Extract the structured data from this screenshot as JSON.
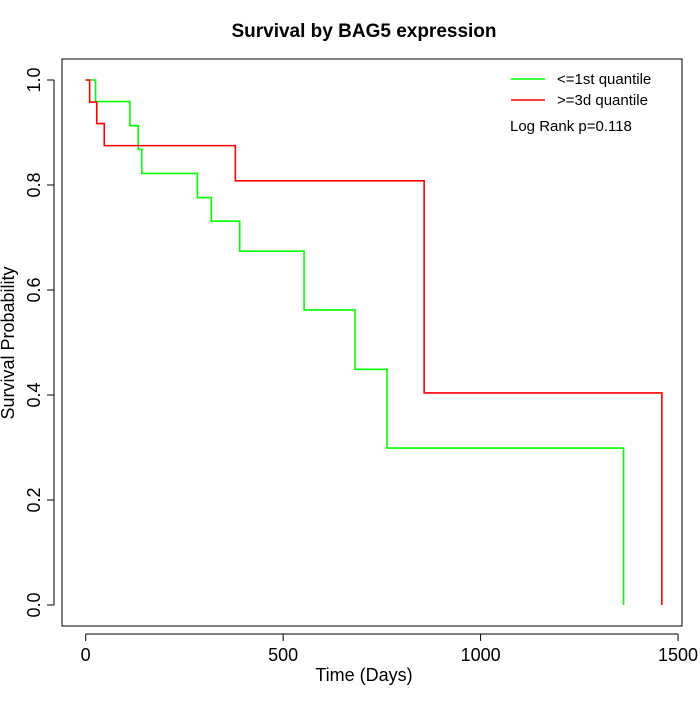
{
  "chart_data": {
    "type": "line",
    "subtype": "kaplan-meier step",
    "title": "Survival by BAG5 expression",
    "xlabel": "Time (Days)",
    "ylabel": "Survival Probability",
    "xlim": [
      -60,
      1510
    ],
    "ylim": [
      -0.04,
      1.04
    ],
    "xticks": [
      0,
      500,
      1000,
      1500
    ],
    "xtick_labels": [
      "0",
      "500",
      "1000",
      "1500"
    ],
    "yticks": [
      0,
      0.2,
      0.4,
      0.6,
      0.8,
      1.0
    ],
    "ytick_labels": [
      "0.0",
      "0.2",
      "0.4",
      "0.6",
      "0.8",
      "1.0"
    ],
    "grid": false,
    "legend_position": "top-right",
    "annotation": "Log Rank p=0.118",
    "series": [
      {
        "name": "<=1st quantile",
        "color": "#00ff00",
        "x": [
          0,
          25,
          112,
          133,
          142,
          283,
          318,
          390,
          553,
          682,
          763,
          1362,
          1362
        ],
        "y": [
          1.0,
          0.959,
          0.913,
          0.868,
          0.822,
          0.776,
          0.731,
          0.674,
          0.562,
          0.449,
          0.299,
          0.299,
          0.0
        ]
      },
      {
        "name": ">=3d quantile",
        "color": "#ff0000",
        "x": [
          0,
          10,
          28,
          47,
          379,
          857,
          1459,
          1459
        ],
        "y": [
          1.0,
          0.958,
          0.917,
          0.875,
          0.808,
          0.404,
          0.404,
          0.0
        ]
      }
    ]
  }
}
